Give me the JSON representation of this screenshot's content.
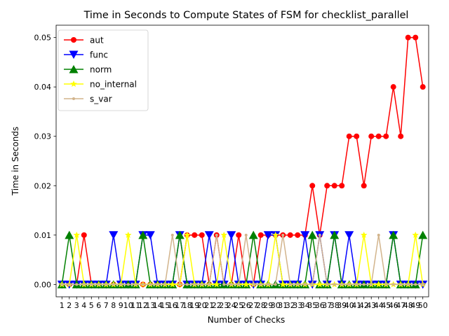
{
  "chart_data": {
    "type": "line",
    "title": "Time in Seconds to Compute States of FSM for checklist_parallel",
    "xlabel": "Number of Checks",
    "ylabel": "Time in Seconds",
    "x": [
      1,
      2,
      3,
      4,
      5,
      6,
      7,
      8,
      9,
      10,
      11,
      12,
      13,
      14,
      15,
      16,
      17,
      18,
      19,
      20,
      21,
      22,
      23,
      24,
      25,
      26,
      27,
      28,
      29,
      30,
      31,
      32,
      33,
      34,
      35,
      36,
      37,
      38,
      39,
      40,
      41,
      42,
      43,
      44,
      45,
      46,
      47,
      48,
      49,
      50
    ],
    "yticks": [
      "0.00",
      "0.01",
      "0.02",
      "0.03",
      "0.04",
      "0.05"
    ],
    "ylim": [
      -0.0025,
      0.0525
    ],
    "legend_position": "upper-left",
    "series": [
      {
        "name": "aut",
        "color": "#ff0000",
        "marker": "circle",
        "values": [
          0,
          0,
          0,
          0.01,
          0,
          0,
          0,
          0,
          0,
          0,
          0,
          0,
          0,
          0,
          0,
          0,
          0,
          0.01,
          0.01,
          0.01,
          0,
          0.01,
          0,
          0,
          0.01,
          0,
          0,
          0.01,
          0.01,
          0.01,
          0.01,
          0.01,
          0.01,
          0.01,
          0.02,
          0.01,
          0.02,
          0.02,
          0.02,
          0.03,
          0.03,
          0.02,
          0.03,
          0.03,
          0.03,
          0.04,
          0.03,
          0.05,
          0.05,
          0.04
        ]
      },
      {
        "name": "func",
        "color": "#0000ff",
        "marker": "triangle-down",
        "values": [
          0,
          0,
          0,
          0,
          0,
          0,
          0,
          0.01,
          0,
          0,
          0,
          0.01,
          0.01,
          0,
          0,
          0,
          0.01,
          0,
          0,
          0,
          0.01,
          0,
          0,
          0.01,
          0,
          0,
          0,
          0,
          0.01,
          0.01,
          0,
          0,
          0,
          0.01,
          0,
          0.01,
          0,
          0.01,
          0,
          0.01,
          0,
          0,
          0,
          0,
          0,
          0.01,
          0,
          0,
          0,
          0
        ]
      },
      {
        "name": "norm",
        "color": "#008000",
        "marker": "triangle-up",
        "values": [
          0,
          0.01,
          0,
          0,
          0,
          0,
          0,
          0,
          0,
          0,
          0,
          0.01,
          0,
          0,
          0,
          0,
          0.01,
          0,
          0,
          0,
          0,
          0,
          0,
          0,
          0,
          0,
          0.01,
          0,
          0,
          0,
          0,
          0,
          0,
          0,
          0.01,
          0,
          0,
          0.01,
          0,
          0,
          0,
          0,
          0,
          0,
          0,
          0.01,
          0,
          0,
          0,
          0.01
        ]
      },
      {
        "name": "no_internal",
        "color": "#ffff00",
        "marker": "star",
        "values": [
          0,
          0,
          0.01,
          0,
          0,
          0,
          0,
          0,
          0,
          0.01,
          0,
          0,
          0,
          0,
          0,
          0,
          0,
          0.01,
          0,
          0,
          0,
          0,
          0.01,
          0,
          0,
          0,
          0,
          0,
          0,
          0.01,
          0,
          0,
          0,
          0,
          0,
          0,
          0,
          0,
          0,
          0,
          0,
          0.01,
          0,
          0,
          0,
          0,
          0,
          0,
          0.01,
          0
        ]
      },
      {
        "name": "s_var",
        "color": "#d2b48c",
        "marker": "point",
        "values": [
          0,
          0,
          0,
          0,
          0,
          0,
          0,
          0,
          0,
          0,
          0,
          0,
          0,
          0,
          0,
          0.01,
          0,
          0,
          0,
          0,
          0,
          0.01,
          0,
          0,
          0,
          0.01,
          0,
          0,
          0,
          0,
          0.01,
          0,
          0,
          0,
          0,
          0.01,
          0,
          0,
          0,
          0,
          0,
          0,
          0,
          0.01,
          0,
          0,
          0,
          0,
          0,
          0
        ]
      }
    ]
  }
}
